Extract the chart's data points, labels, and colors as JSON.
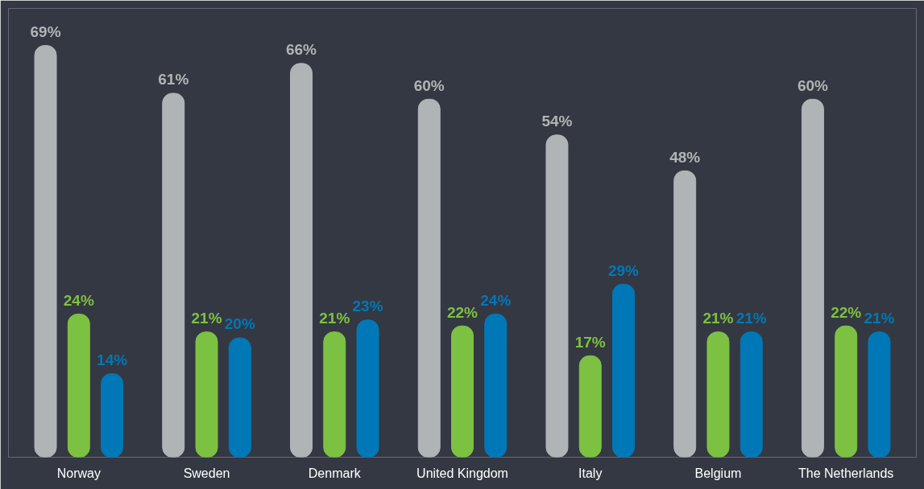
{
  "chart_data": {
    "type": "bar",
    "categories": [
      "Norway",
      "Sweden",
      "Denmark",
      "United Kingdom",
      "Italy",
      "Belgium",
      "The Netherlands"
    ],
    "series": [
      {
        "color": "#b1b4b6",
        "values": [
          69,
          61,
          66,
          60,
          54,
          48,
          60
        ],
        "value_labels": [
          "69%",
          "61%",
          "66%",
          "60%",
          "54%",
          "48%",
          "60%"
        ]
      },
      {
        "color": "#7dc143",
        "values": [
          24,
          21,
          21,
          22,
          17,
          21,
          22
        ],
        "value_labels": [
          "24%",
          "21%",
          "21%",
          "22%",
          "17%",
          "21%",
          "22%"
        ]
      },
      {
        "color": "#0078b7",
        "values": [
          14,
          20,
          23,
          24,
          29,
          21,
          21
        ],
        "value_labels": [
          "14%",
          "20%",
          "23%",
          "24%",
          "29%",
          "21%",
          "21%"
        ]
      }
    ],
    "grid": false
  }
}
